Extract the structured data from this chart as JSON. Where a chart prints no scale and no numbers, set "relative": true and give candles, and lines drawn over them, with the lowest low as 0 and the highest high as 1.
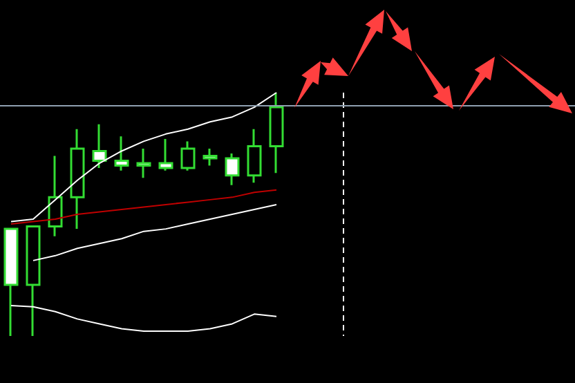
{
  "chart_data": {
    "type": "candlestick",
    "relative": true,
    "categories": [
      null,
      null,
      null,
      null,
      null,
      null,
      null,
      null,
      null,
      null,
      null,
      null,
      null,
      null,
      null,
      null,
      null,
      null,
      null,
      null,
      null,
      null,
      null,
      null,
      null,
      null
    ],
    "series": [
      {
        "type": "line",
        "color": "#ffffff",
        "values": [
          0.47,
          0.48,
          0.56,
          0.64,
          0.71,
          0.76,
          0.8,
          0.83,
          0.85,
          0.88,
          0.9,
          0.94,
          1.0,
          null,
          null,
          null,
          null,
          null,
          null,
          null,
          null,
          null,
          null,
          null,
          null,
          null
        ]
      },
      {
        "type": "line",
        "color": "#c00000",
        "values": [
          0.46,
          0.47,
          0.48,
          0.5,
          0.51,
          0.52,
          0.53,
          0.54,
          0.55,
          0.56,
          0.57,
          0.59,
          0.6,
          null,
          null,
          null,
          null,
          null,
          null,
          null,
          null,
          null,
          null,
          null,
          null,
          null
        ]
      },
      {
        "type": "line",
        "color": "#ffffff",
        "values": [
          null,
          0.31,
          0.33,
          0.36,
          0.38,
          0.4,
          0.43,
          0.44,
          0.46,
          0.48,
          0.5,
          0.52,
          0.54,
          null,
          null,
          null,
          null,
          null,
          null,
          null,
          null,
          null,
          null,
          null,
          null,
          null
        ]
      },
      {
        "type": "line",
        "color": "#ffffff",
        "values": [
          0.125,
          0.12,
          0.1,
          0.07,
          0.05,
          0.03,
          0.02,
          0.02,
          0.02,
          0.03,
          0.05,
          0.09,
          0.08,
          null,
          null,
          null,
          null,
          null,
          null,
          null,
          null,
          null,
          null,
          null,
          null,
          null
        ]
      },
      {
        "color": "#33dd33",
        "ohlc": [
          [
            0.44,
            0.44,
            0,
            0.21
          ],
          [
            0.21,
            0.45,
            0,
            0.45
          ],
          [
            0.45,
            0.74,
            0.41,
            0.57
          ],
          [
            0.57,
            0.85,
            0.44,
            0.77
          ],
          [
            0.76,
            0.87,
            0.69,
            0.72
          ],
          [
            0.72,
            0.82,
            0.68,
            0.7
          ],
          [
            0.71,
            0.77,
            0.65,
            0.7
          ],
          [
            0.71,
            0.81,
            0.68,
            0.69
          ],
          [
            0.69,
            0.8,
            0.68,
            0.77
          ],
          [
            0.74,
            0.77,
            0.7,
            0.73
          ],
          [
            0.73,
            0.75,
            0.62,
            0.66
          ],
          [
            0.66,
            0.85,
            0.63,
            0.78
          ],
          [
            0.78,
            1,
            0.67,
            0.94
          ],
          null,
          null,
          null,
          null,
          null,
          null,
          null,
          null,
          null,
          null,
          null,
          null,
          null
        ]
      }
    ],
    "ref_lines": [
      {
        "axis": "y",
        "value": 0.95,
        "color": "#8fa0b0",
        "line_style": "solid"
      }
    ]
  }
}
